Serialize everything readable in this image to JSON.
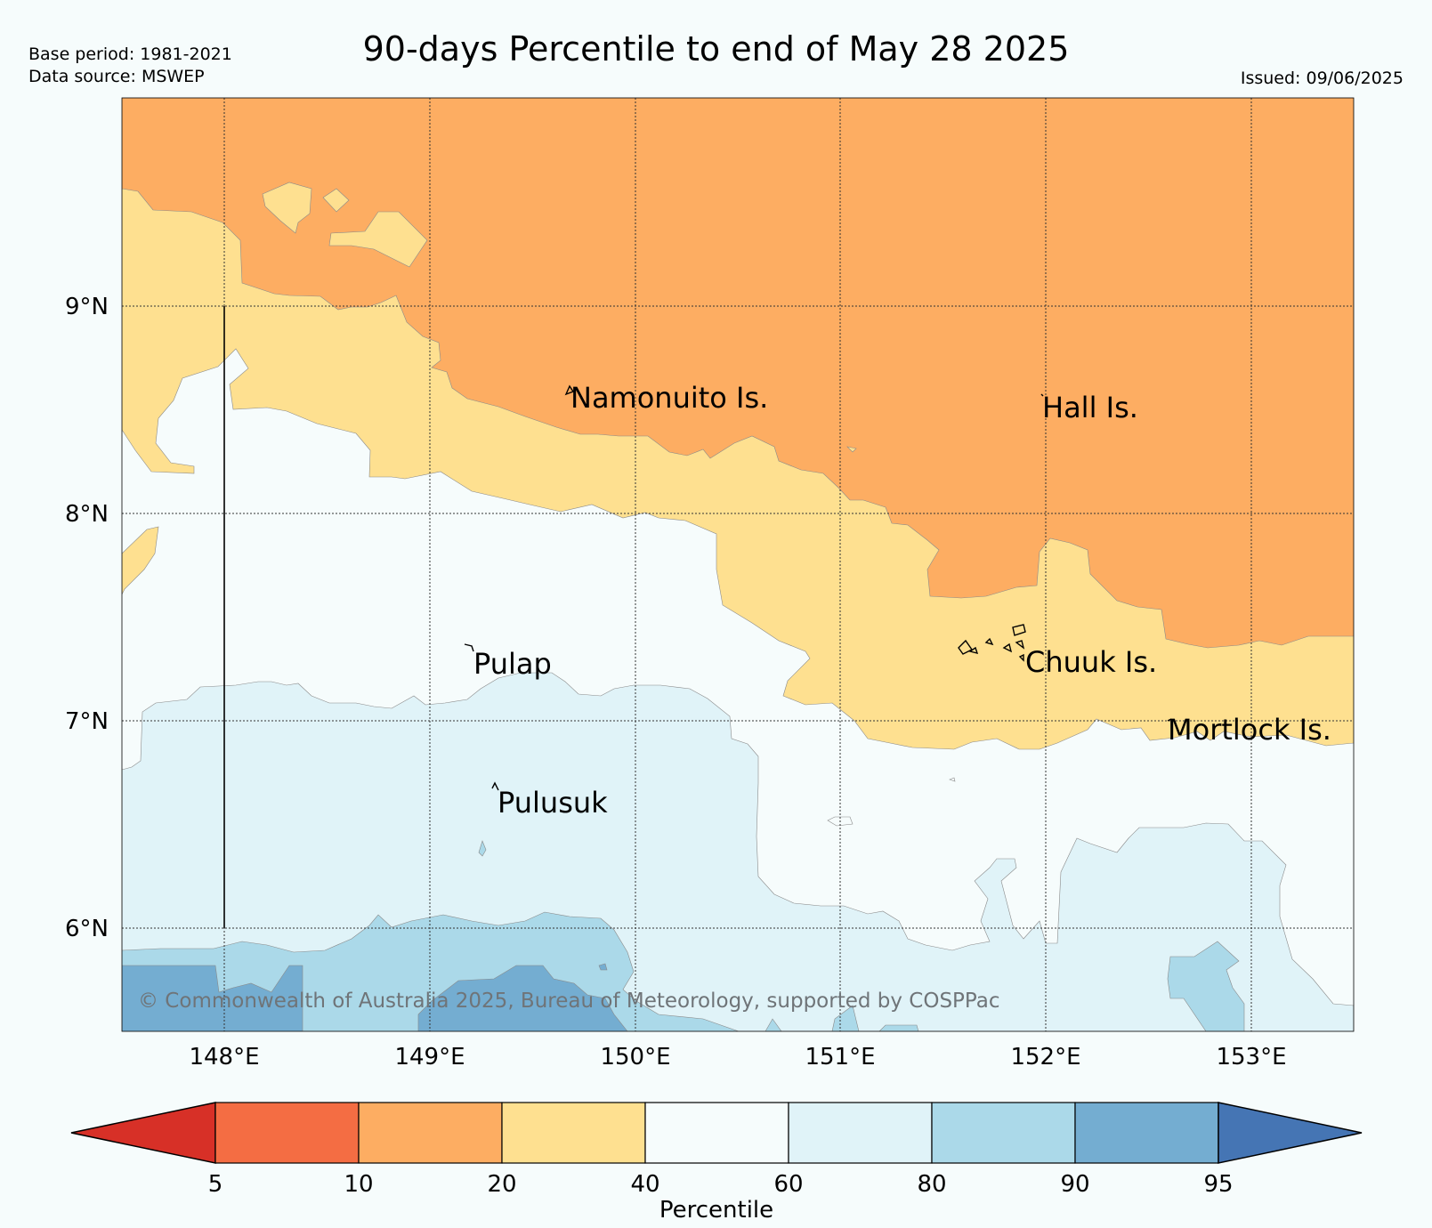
{
  "header": {
    "base_period": "Base period: 1981-2021",
    "data_source": "Data source: MSWEP",
    "title": "90-days Percentile to end of May 28 2025",
    "issued": "Issued: 09/06/2025"
  },
  "map": {
    "lon_range": [
      147.5,
      153.5
    ],
    "lat_range": [
      5.5,
      10.0
    ],
    "lon_ticks": [
      {
        "value": 148,
        "label": "148°E"
      },
      {
        "value": 149,
        "label": "149°E"
      },
      {
        "value": 150,
        "label": "150°E"
      },
      {
        "value": 151,
        "label": "151°E"
      },
      {
        "value": 152,
        "label": "152°E"
      },
      {
        "value": 153,
        "label": "153°E"
      }
    ],
    "lat_ticks": [
      {
        "value": 9,
        "label": "9°N"
      },
      {
        "value": 8,
        "label": "8°N"
      },
      {
        "value": 7,
        "label": "7°N"
      },
      {
        "value": 6,
        "label": "6°N"
      }
    ],
    "place_labels": [
      {
        "name": "Namonuito Is.",
        "lon": 149.67,
        "lat": 8.55
      },
      {
        "name": "Hall Is.",
        "lon": 151.98,
        "lat": 8.5
      },
      {
        "name": "Pulap",
        "lon": 149.32,
        "lat": 7.26
      },
      {
        "name": "Chuuk Is.",
        "lon": 151.85,
        "lat": 7.27
      },
      {
        "name": "Mortlock Is.",
        "lon": 152.6,
        "lat": 6.95
      },
      {
        "name": "Pulusuk",
        "lon": 149.45,
        "lat": 6.59
      }
    ],
    "copyright": "© Commonwealth of Australia 2025, Bureau of Meteorology, supported by COSPPac",
    "colors": {
      "p10_20": "#fdad62",
      "p20_40": "#fee090",
      "p40_60": "#f6fcfc",
      "p60_80": "#e0f3f8",
      "p80_90": "#abd9e9",
      "p90_95": "#74add1"
    }
  },
  "colorbar": {
    "label": "Percentile",
    "ticks": [
      "5",
      "10",
      "20",
      "40",
      "60",
      "80",
      "90",
      "95"
    ],
    "colors": [
      "#d73027",
      "#f46d43",
      "#fdad62",
      "#fee090",
      "#f6fcfc",
      "#e0f3f8",
      "#abd9e9",
      "#74add1",
      "#4575b4"
    ]
  }
}
